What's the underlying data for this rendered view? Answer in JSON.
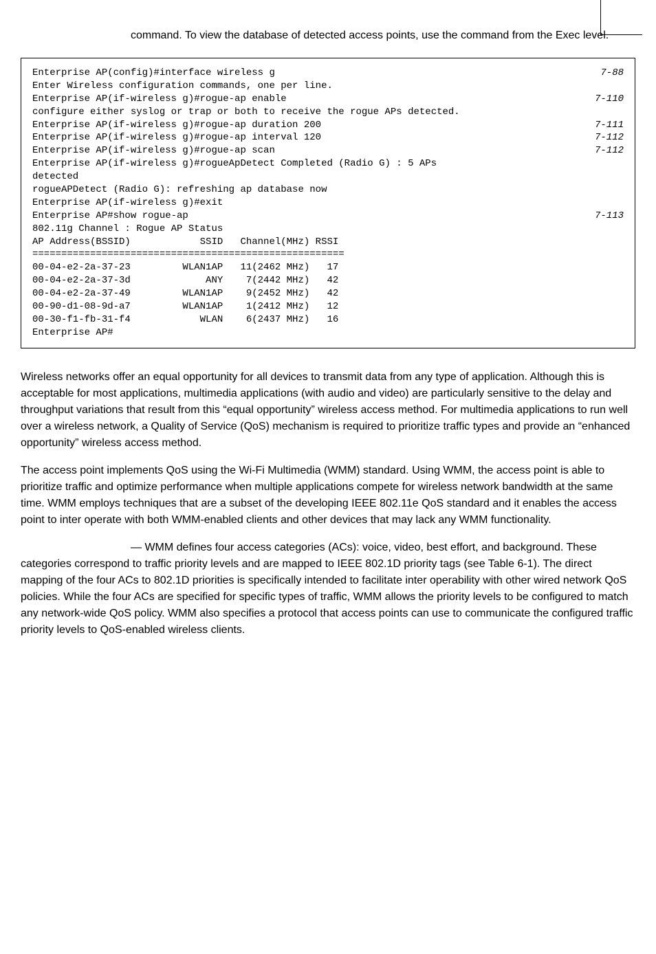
{
  "intro": "command. To view the database of detected access points, use the command from the Exec level.",
  "code": {
    "l1": "Enterprise AP(config)#interface wireless g",
    "r1": "7-88",
    "l2": "Enter Wireless configuration commands, one per line.",
    "l3": "Enterprise AP(if-wireless g)#rogue-ap enable",
    "r3": "7-110",
    "l4": "configure either syslog or trap or both to receive the rogue APs detected.",
    "l5": "Enterprise AP(if-wireless g)#rogue-ap duration 200",
    "r5": "7-111",
    "l6": "Enterprise AP(if-wireless g)#rogue-ap interval 120",
    "r6": "7-112",
    "l7": "Enterprise AP(if-wireless g)#rogue-ap scan",
    "r7": "7-112",
    "l8": "Enterprise AP(if-wireless g)#rogueApDetect Completed (Radio G) : 5 APs",
    "l9": "detected",
    "l10": "rogueAPDetect (Radio G): refreshing ap database now",
    "l11": "",
    "l12": "Enterprise AP(if-wireless g)#exit",
    "l13": "Enterprise AP#show rogue-ap",
    "r13": "7-113",
    "l14": "",
    "l15": "802.11g Channel : Rogue AP Status",
    "l16": "AP Address(BSSID)            SSID   Channel(MHz) RSSI",
    "l17": "======================================================",
    "l18": "00-04-e2-2a-37-23         WLAN1AP   11(2462 MHz)   17",
    "l19": "00-04-e2-2a-37-3d             ANY    7(2442 MHz)   42",
    "l20": "00-04-e2-2a-37-49         WLAN1AP    9(2452 MHz)   42",
    "l21": "00-90-d1-08-9d-a7         WLAN1AP    1(2412 MHz)   12",
    "l22": "00-30-f1-fb-31-f4            WLAN    6(2437 MHz)   16",
    "l23": "Enterprise AP#"
  },
  "para1": "Wireless networks offer an equal opportunity for all devices to transmit data from any type of application. Although this is acceptable for most applications, multimedia applications (with audio and video) are particularly sensitive to the delay and throughput variations that result from this “equal opportunity” wireless access method. For multimedia applications to run well over a wireless network, a Quality of Service (QoS) mechanism is required to prioritize traffic types and provide an “enhanced opportunity” wireless access method.",
  "para2": "The access point implements QoS using the Wi-Fi Multimedia (WMM) standard. Using WMM, the access point is able to prioritize traffic and optimize performance when multiple applications compete for wireless network bandwidth at the same time. WMM employs techniques that are a subset of the developing IEEE 802.11e QoS standard and it enables the access point to inter operate with both WMM-enabled clients and other devices that may lack any WMM functionality.",
  "para3": "— WMM defines four access categories (ACs): voice, video, best effort, and background. These categories correspond to traffic priority levels and are mapped to IEEE 802.1D priority tags (see Table 6-1). The direct mapping of the four ACs to 802.1D priorities is specifically intended to facilitate inter operability with other wired network QoS policies. While the four ACs are specified for specific types of traffic, WMM allows the priority levels to be configured to match any network-wide QoS policy. WMM also specifies a protocol that access points can use to communicate the configured traffic priority levels to QoS-enabled wireless clients."
}
